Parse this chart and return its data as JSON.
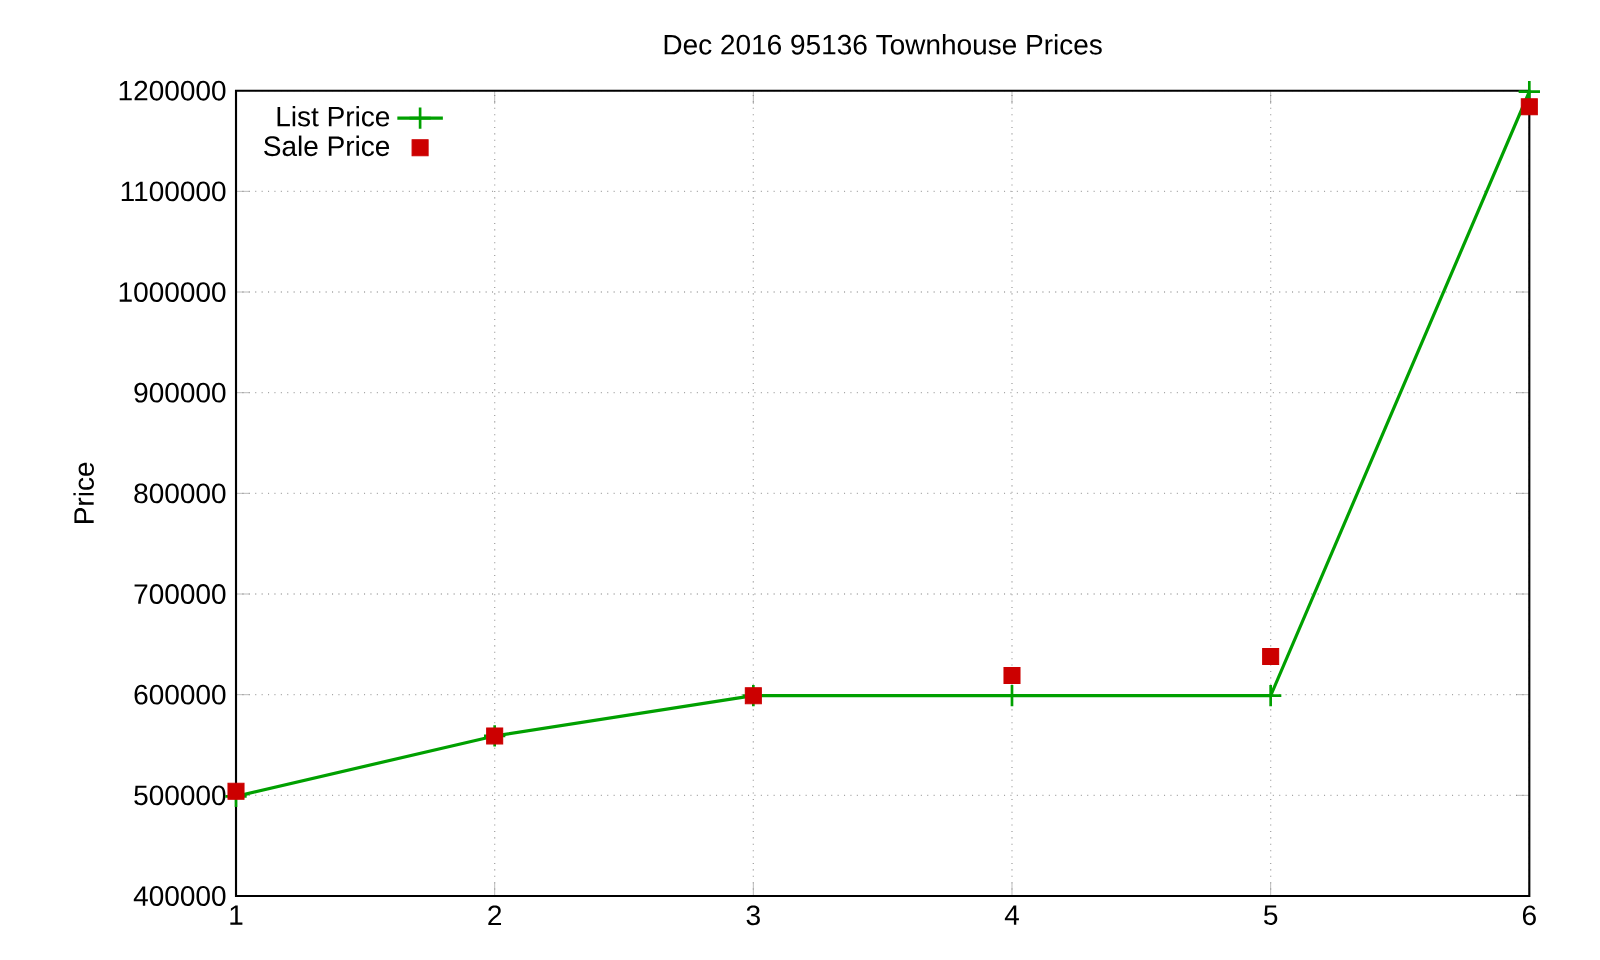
{
  "chart_data": {
    "type": "line",
    "title": "Dec 2016 95136 Townhouse Prices",
    "ylabel": "Price",
    "x": [
      1,
      2,
      3,
      4,
      5,
      6
    ],
    "series": [
      {
        "name": "List Price",
        "color": "#00a000",
        "marker": "cross",
        "line_style": "solid",
        "values": [
          499000,
          559000,
          599000,
          599000,
          599000,
          1199000
        ]
      },
      {
        "name": "Sale Price",
        "type": "scatter",
        "color": "#cc0000",
        "marker": "square",
        "values": [
          504000,
          559000,
          599000,
          619000,
          638000,
          1184000
        ]
      }
    ],
    "xlim": [
      1,
      6
    ],
    "xticks": [
      1,
      2,
      3,
      4,
      5,
      6
    ],
    "ylim": [
      400000,
      1200000
    ],
    "yticks": [
      400000,
      500000,
      600000,
      700000,
      800000,
      900000,
      1000000,
      1100000,
      1200000
    ],
    "grid": true,
    "legend": "top left"
  }
}
